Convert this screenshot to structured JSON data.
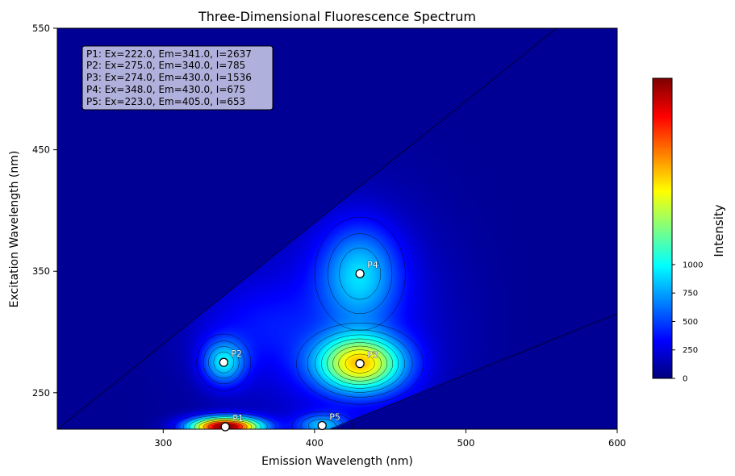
{
  "chart_data": {
    "type": "heatmap",
    "title": "Three-Dimensional Fluorescence Spectrum",
    "xlabel": "Emission Wavelength (nm)",
    "ylabel": "Excitation Wavelength (nm)",
    "xlim": [
      230,
      600
    ],
    "ylim": [
      220,
      550
    ],
    "x_ticks": [
      300,
      400,
      500,
      600
    ],
    "y_ticks": [
      250,
      350,
      450,
      550
    ],
    "colorbar": {
      "label": "Intensity",
      "range": [
        0,
        2637
      ],
      "ticks": [
        0,
        250,
        500,
        750,
        1000
      ],
      "colormap": "jet"
    },
    "scatter_region": {
      "rayleigh_first_order": "Em = Ex + 10",
      "rayleigh_second_order": "Em = 2*Ex - 30"
    },
    "peaks": [
      {
        "name": "P1",
        "ex": 222.0,
        "em": 341.0,
        "intensity": 2637
      },
      {
        "name": "P2",
        "ex": 275.0,
        "em": 340.0,
        "intensity": 785
      },
      {
        "name": "P3",
        "ex": 274.0,
        "em": 430.0,
        "intensity": 1536
      },
      {
        "name": "P4",
        "ex": 348.0,
        "em": 430.0,
        "intensity": 675
      },
      {
        "name": "P5",
        "ex": 223.0,
        "em": 405.0,
        "intensity": 653
      }
    ],
    "annotation_lines": [
      "P1: Ex=222.0, Em=341.0, I=2637",
      "P2: Ex=275.0, Em=340.0, I=785",
      "P3: Ex=274.0, Em=430.0, I=1536",
      "P4: Ex=348.0, Em=430.0, I=675",
      "P5: Ex=223.0, Em=405.0, I=653"
    ],
    "grid": false,
    "legend": "top-left"
  }
}
